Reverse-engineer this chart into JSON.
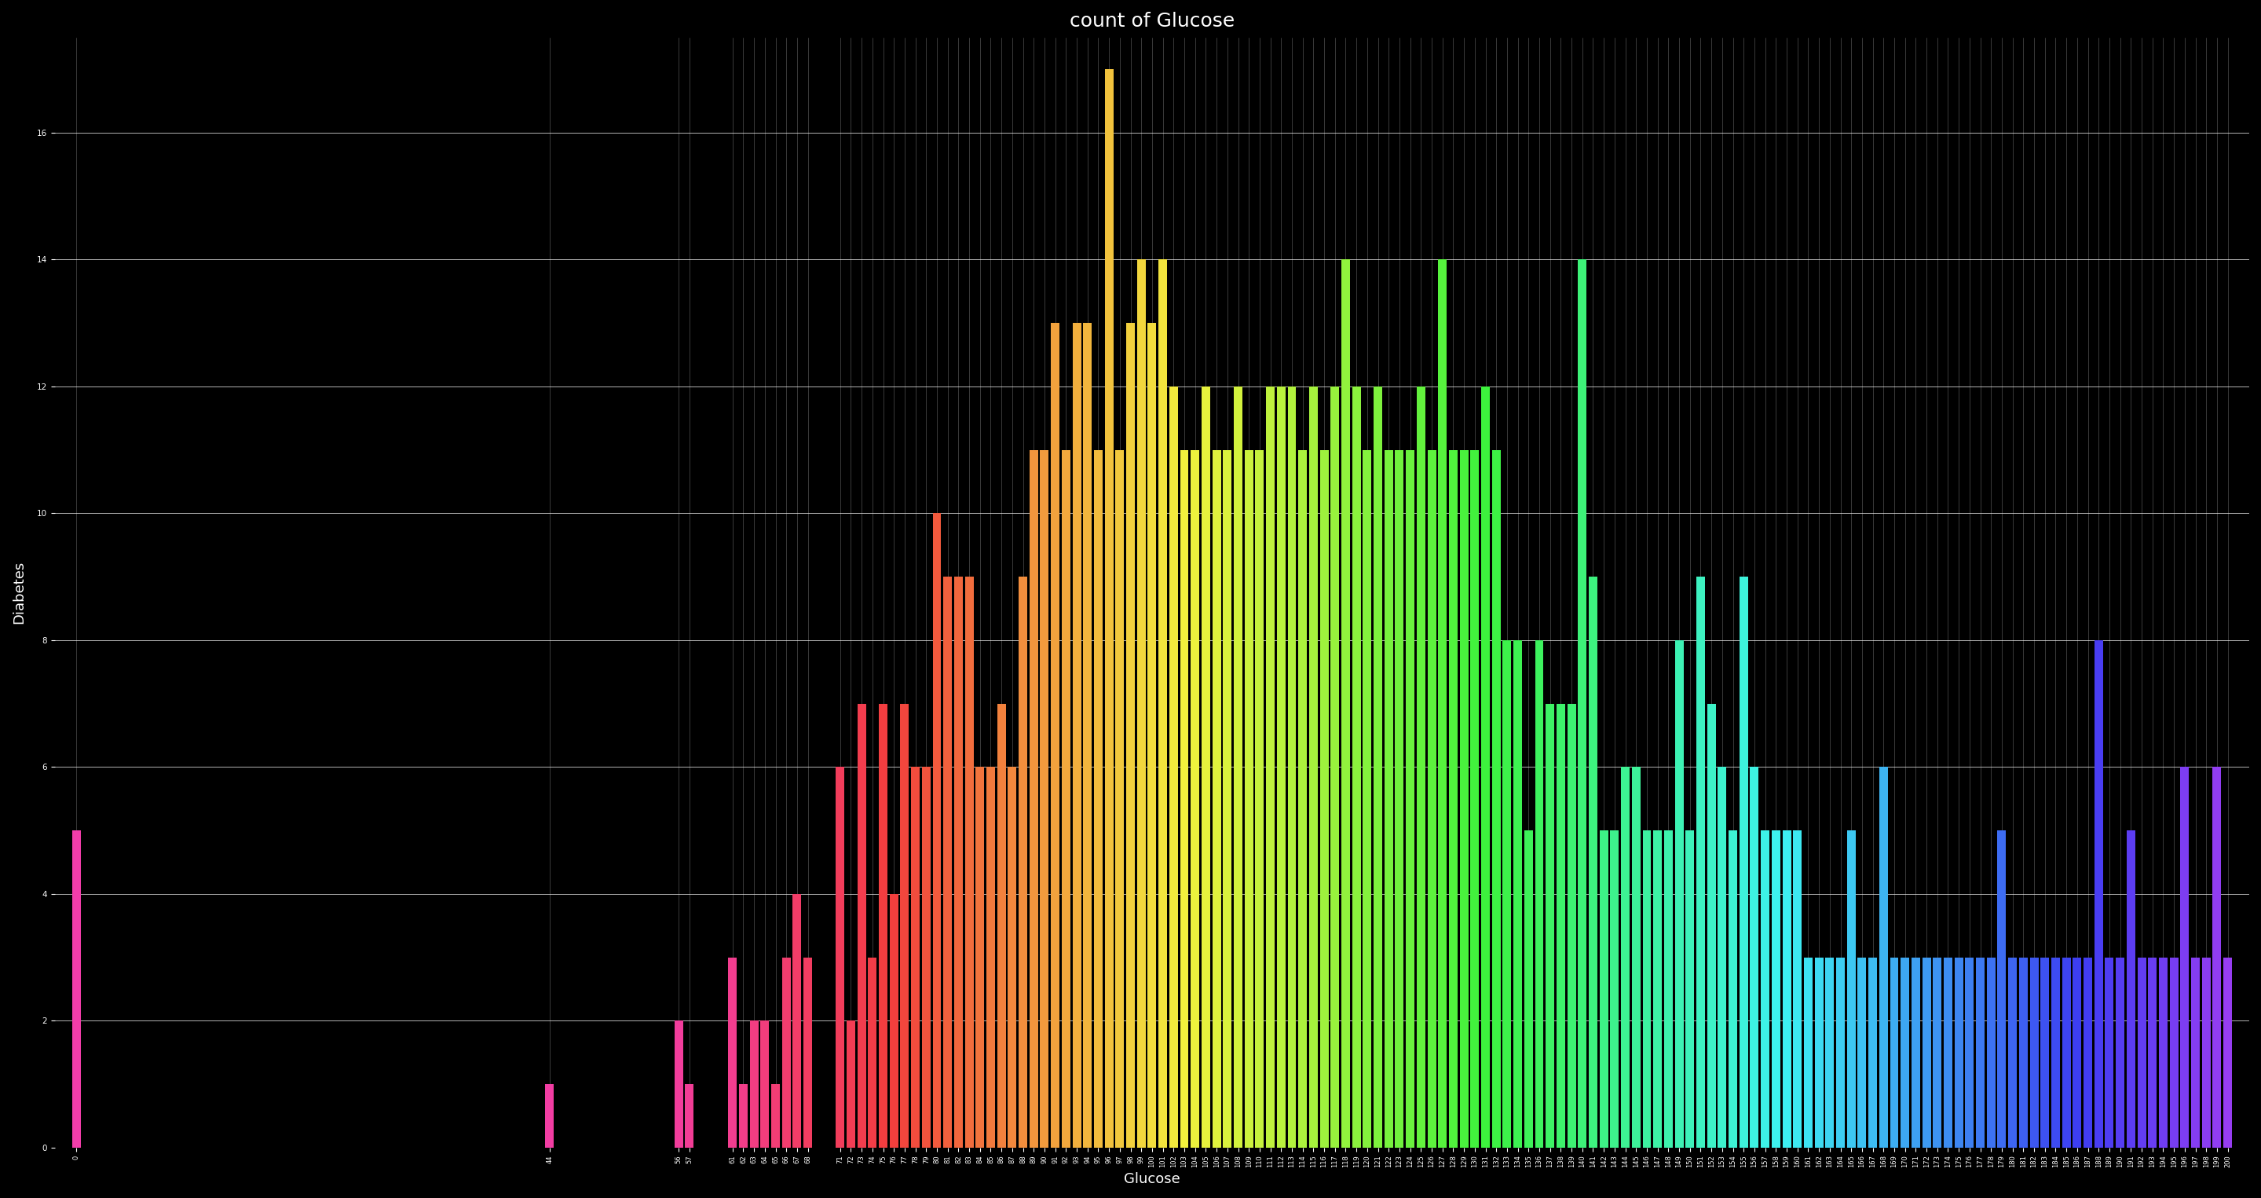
{
  "title": "count of Glucose",
  "xlabel": "Glucose",
  "ylabel": "Diabetes",
  "background_color": "#000000",
  "text_color": "#ffffff",
  "grid_color": "#ffffff",
  "ylim": [
    0,
    17.5
  ],
  "yticks": [
    0,
    2,
    4,
    6,
    8,
    10,
    12,
    14,
    16
  ],
  "glucose_counts": {
    "0": 5,
    "44": 1,
    "56": 2,
    "57": 1,
    "61": 3,
    "62": 1,
    "63": 2,
    "64": 2,
    "65": 1,
    "66": 3,
    "67": 4,
    "68": 3,
    "71": 6,
    "72": 2,
    "73": 7,
    "74": 3,
    "75": 7,
    "76": 4,
    "77": 7,
    "78": 6,
    "79": 6,
    "80": 10,
    "81": 9,
    "82": 9,
    "83": 9,
    "84": 6,
    "85": 6,
    "86": 7,
    "87": 6,
    "88": 9,
    "89": 11,
    "90": 11,
    "91": 13,
    "92": 11,
    "93": 13,
    "94": 13,
    "95": 11,
    "96": 17,
    "97": 11,
    "98": 13,
    "99": 14,
    "100": 13,
    "101": 14,
    "102": 12,
    "103": 11,
    "104": 11,
    "105": 12,
    "106": 11,
    "107": 11,
    "108": 12,
    "109": 11,
    "110": 11,
    "111": 12,
    "112": 12,
    "113": 12,
    "114": 11,
    "115": 12,
    "116": 11,
    "117": 12,
    "118": 14,
    "119": 12,
    "120": 11,
    "121": 12,
    "122": 11,
    "123": 11,
    "124": 11,
    "125": 12,
    "126": 11,
    "127": 14,
    "128": 11,
    "129": 11,
    "130": 11,
    "131": 12,
    "132": 11,
    "133": 8,
    "134": 8,
    "135": 5,
    "136": 8,
    "137": 7,
    "138": 7,
    "139": 7,
    "140": 14,
    "141": 9,
    "142": 5,
    "143": 5,
    "144": 6,
    "145": 6,
    "146": 5,
    "147": 5,
    "148": 5,
    "149": 8,
    "150": 5,
    "151": 9,
    "152": 7,
    "153": 6,
    "154": 5,
    "155": 9,
    "156": 6,
    "157": 5,
    "158": 5,
    "159": 5,
    "160": 5,
    "161": 3,
    "162": 3,
    "163": 3,
    "164": 3,
    "165": 5,
    "166": 3,
    "167": 3,
    "168": 6,
    "169": 3,
    "170": 3,
    "171": 3,
    "172": 3,
    "173": 3,
    "174": 3,
    "175": 3,
    "176": 3,
    "177": 3,
    "178": 3,
    "179": 5,
    "180": 3,
    "181": 3,
    "182": 3,
    "183": 3,
    "184": 3,
    "185": 3,
    "186": 3,
    "187": 3,
    "188": 8,
    "189": 3,
    "190": 3,
    "191": 5,
    "192": 3,
    "193": 3,
    "194": 3,
    "195": 3,
    "196": 6,
    "197": 3,
    "198": 3,
    "199": 6,
    "200": 3
  }
}
